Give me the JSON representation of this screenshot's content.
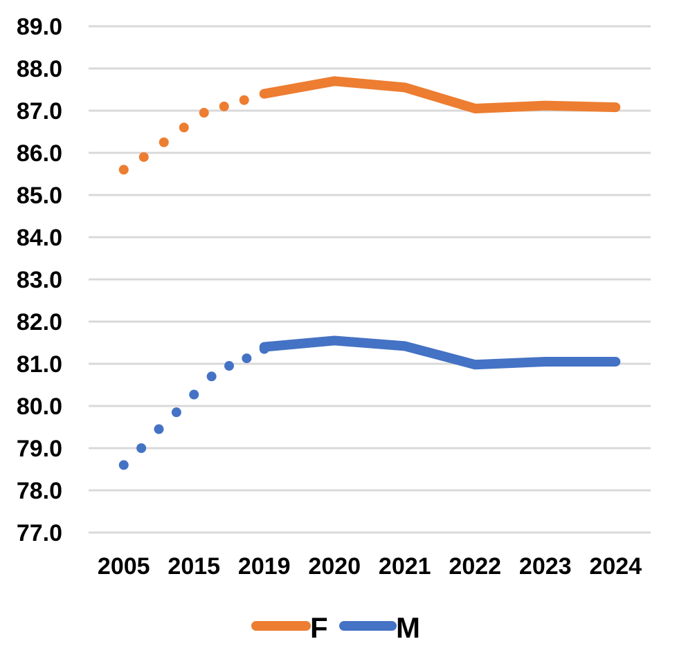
{
  "chart_data": {
    "type": "line",
    "categories": [
      "2005",
      "2015",
      "2019",
      "2020",
      "2021",
      "2022",
      "2023",
      "2024"
    ],
    "y_ticks": [
      "77.0",
      "78.0",
      "79.0",
      "80.0",
      "81.0",
      "82.0",
      "83.0",
      "84.0",
      "85.0",
      "86.0",
      "87.0",
      "88.0",
      "89.0"
    ],
    "ylim": [
      77,
      89
    ],
    "grid": true,
    "legend_position": "bottom",
    "series": [
      {
        "name": "F",
        "color": "#ED7D31",
        "dotted_trend": {
          "from": "2005",
          "to": "2019",
          "values": [
            85.6,
            85.9,
            86.25,
            86.6,
            86.95,
            87.1,
            87.25,
            87.4
          ]
        },
        "solid_values": {
          "2019": 87.4,
          "2020": 87.7,
          "2021": 87.55,
          "2022": 87.05,
          "2023": 87.12,
          "2024": 87.08
        }
      },
      {
        "name": "M",
        "color": "#4472C4",
        "dotted_trend": {
          "from": "2005",
          "to": "2019",
          "values": [
            78.6,
            79.0,
            79.45,
            79.85,
            80.27,
            80.7,
            80.95,
            81.13,
            81.35
          ]
        },
        "solid_values": {
          "2019": 81.4,
          "2020": 81.55,
          "2021": 81.42,
          "2022": 80.98,
          "2023": 81.05,
          "2024": 81.05
        }
      }
    ]
  }
}
